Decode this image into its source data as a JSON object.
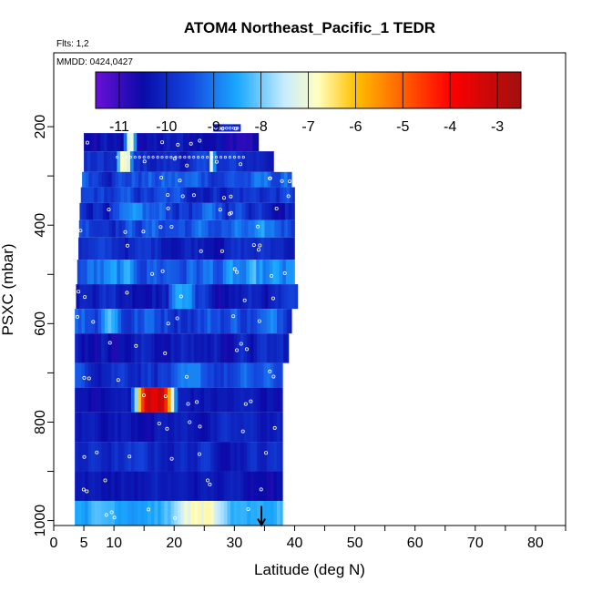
{
  "chart_data": {
    "type": "heatmap",
    "title": "ATOM4 Northeast_Pacific_1 TEDR",
    "subtitle_flights": "Flts: 1,2",
    "subtitle_dates": "MMDD: 0424,0427",
    "xlabel": "Latitude (deg N)",
    "ylabel": "PSXC (mbar)",
    "xlim": [
      0,
      85
    ],
    "ylim": [
      1010,
      50
    ],
    "y_reversed": true,
    "x_ticks": [
      0,
      5,
      10,
      20,
      30,
      40,
      50,
      60,
      70,
      80
    ],
    "x_minor_ticks": [
      15,
      25,
      35,
      45,
      55,
      65,
      75,
      85
    ],
    "y_ticks": [
      200,
      400,
      600,
      800,
      1000
    ],
    "y_minor_ticks": [
      300,
      500,
      700,
      900
    ],
    "colorbar": {
      "range": [
        -11.5,
        -2.5
      ],
      "ticks": [
        -11,
        -10,
        -9,
        -8,
        -7,
        -6,
        -5,
        -4,
        -3
      ],
      "colors": [
        "#6a10d8",
        "#0a0aa8",
        "#1448e0",
        "#1aa8ff",
        "#c8ecff",
        "#ffffc0",
        "#ffc000",
        "#ff6000",
        "#ff0000",
        "#a01010"
      ],
      "color_stops": [
        -11.5,
        -10.5,
        -9.5,
        -8.5,
        -7.5,
        -6.8,
        -6.0,
        -5.0,
        -4.0,
        -2.5
      ]
    },
    "bands": [
      {
        "p_top": 195,
        "p_bot": 210,
        "lat_min": 26.5,
        "lat_max": 31,
        "base": -10.2,
        "var": 0.6,
        "hot": []
      },
      {
        "p_top": 213,
        "p_bot": 250,
        "lat_min": 5,
        "lat_max": 34,
        "base": -10.4,
        "var": 0.8,
        "hot": [
          {
            "lat": 12.5,
            "w": 1.2,
            "v": -7.2
          }
        ]
      },
      {
        "p_top": 250,
        "p_bot": 292,
        "lat_min": 5,
        "lat_max": 36.5,
        "base": -10.0,
        "var": 0.9,
        "hot": [
          {
            "lat": 11.5,
            "w": 1.5,
            "v": -7.0
          },
          {
            "lat": 26,
            "w": 0.6,
            "v": -7.0
          }
        ]
      },
      {
        "p_top": 292,
        "p_bot": 323,
        "lat_min": 4.7,
        "lat_max": 39.5,
        "base": -9.4,
        "var": 1.2,
        "hot": []
      },
      {
        "p_top": 323,
        "p_bot": 355,
        "lat_min": 4.5,
        "lat_max": 40,
        "base": -9.8,
        "var": 1.1,
        "hot": []
      },
      {
        "p_top": 355,
        "p_bot": 390,
        "lat_min": 4.3,
        "lat_max": 40,
        "base": -9.6,
        "var": 1.3,
        "hot": []
      },
      {
        "p_top": 390,
        "p_bot": 425,
        "lat_min": 4.2,
        "lat_max": 40,
        "base": -9.4,
        "var": 1.2,
        "hot": []
      },
      {
        "p_top": 425,
        "p_bot": 470,
        "lat_min": 4.1,
        "lat_max": 40,
        "base": -10.0,
        "var": 0.8,
        "hot": []
      },
      {
        "p_top": 470,
        "p_bot": 520,
        "lat_min": 3.9,
        "lat_max": 40,
        "base": -9.2,
        "var": 1.4,
        "hot": []
      },
      {
        "p_top": 520,
        "p_bot": 570,
        "lat_min": 3.7,
        "lat_max": 40.5,
        "base": -10.2,
        "var": 0.9,
        "hot": [
          {
            "lat": 21,
            "w": 2.5,
            "v": -8.4
          }
        ]
      },
      {
        "p_top": 570,
        "p_bot": 620,
        "lat_min": 3.5,
        "lat_max": 39.5,
        "base": -9.4,
        "var": 1.3,
        "hot": [
          {
            "lat": 9,
            "w": 2,
            "v": -8.2
          }
        ]
      },
      {
        "p_top": 620,
        "p_bot": 680,
        "lat_min": 3.5,
        "lat_max": 39,
        "base": -10.2,
        "var": 0.9,
        "hot": []
      },
      {
        "p_top": 680,
        "p_bot": 730,
        "lat_min": 3.5,
        "lat_max": 38,
        "base": -9.6,
        "var": 1.0,
        "hot": []
      },
      {
        "p_top": 730,
        "p_bot": 780,
        "lat_min": 3.5,
        "lat_max": 38,
        "base": -10.3,
        "var": 0.6,
        "hot": [
          {
            "lat": 16.5,
            "w": 4,
            "v": -3.3
          }
        ]
      },
      {
        "p_top": 780,
        "p_bot": 840,
        "lat_min": 3.5,
        "lat_max": 38,
        "base": -10.2,
        "var": 0.6,
        "hot": []
      },
      {
        "p_top": 840,
        "p_bot": 900,
        "lat_min": 3.5,
        "lat_max": 38,
        "base": -10.0,
        "var": 0.7,
        "hot": []
      },
      {
        "p_top": 900,
        "p_bot": 960,
        "lat_min": 3.5,
        "lat_max": 38,
        "base": -10.3,
        "var": 0.5,
        "hot": []
      },
      {
        "p_top": 960,
        "p_bot": 1010,
        "lat_min": 3.5,
        "lat_max": 38,
        "base": -8.3,
        "var": 0.7,
        "hot": [
          {
            "lat": 24,
            "w": 5,
            "v": -7.0
          }
        ]
      }
    ],
    "marker": {
      "lat": 34.5,
      "p": 1000,
      "symbol": "arrow-down"
    }
  }
}
